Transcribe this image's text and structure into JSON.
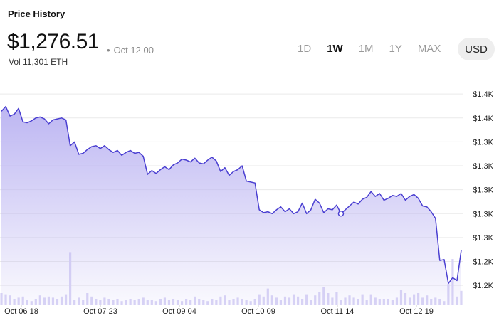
{
  "header": {
    "title": "Price History",
    "price": "$1,276.51",
    "date_stamp": "Oct 12 00",
    "volume": "Vol 11,301 ETH"
  },
  "ranges": [
    {
      "label": "1D",
      "active": false
    },
    {
      "label": "1W",
      "active": true
    },
    {
      "label": "1M",
      "active": false
    },
    {
      "label": "1Y",
      "active": false
    },
    {
      "label": "MAX",
      "active": false
    }
  ],
  "currency": "USD",
  "colors": {
    "line": "#4a3fd1",
    "fill": "#bdb6f2",
    "volume": "#d9d4f5",
    "grid": "#eaeaea"
  },
  "chart_data": {
    "type": "area",
    "ylim": [
      1190,
      1425
    ],
    "y_tick_values": [
      1410,
      1385,
      1360,
      1335,
      1310,
      1285,
      1260,
      1235,
      1210
    ],
    "y_tick_labels": [
      "$1.4K",
      "$1.4K",
      "$1.3K",
      "$1.3K",
      "$1.3K",
      "$1.3K",
      "$1.3K",
      "$1.2K",
      "$1.2K"
    ],
    "x_tick_labels": [
      "Oct 06 18",
      "Oct 07 23",
      "Oct 09 04",
      "Oct 10 09",
      "Oct 11 14",
      "Oct 12 19"
    ],
    "marker_index": 79,
    "series": [
      {
        "values": [
          1392,
          1397,
          1387,
          1389,
          1395,
          1381,
          1380,
          1382,
          1385,
          1386,
          1384,
          1379,
          1383,
          1384,
          1385,
          1383,
          1356,
          1360,
          1347,
          1348,
          1352,
          1355,
          1356,
          1353,
          1356,
          1352,
          1349,
          1351,
          1346,
          1349,
          1351,
          1348,
          1349,
          1345,
          1326,
          1330,
          1327,
          1331,
          1334,
          1331,
          1336,
          1338,
          1342,
          1341,
          1339,
          1343,
          1338,
          1337,
          1341,
          1344,
          1340,
          1329,
          1333,
          1325,
          1329,
          1331,
          1335,
          1319,
          1318,
          1317,
          1289,
          1286,
          1287,
          1285,
          1289,
          1292,
          1287,
          1290,
          1285,
          1287,
          1296,
          1285,
          1289,
          1300,
          1296,
          1286,
          1290,
          1289,
          1294,
          1285,
          1289,
          1293,
          1297,
          1295,
          1300,
          1302,
          1308,
          1303,
          1306,
          1299,
          1301,
          1304,
          1303,
          1306,
          1299,
          1303,
          1305,
          1301,
          1293,
          1292,
          1287,
          1280,
          1236,
          1237,
          1212,
          1218,
          1215,
          1247
        ],
        "volume": [
          10,
          9,
          8,
          5,
          6,
          7,
          4,
          3,
          5,
          8,
          6,
          7,
          6,
          5,
          7,
          9,
          46,
          4,
          6,
          4,
          10,
          7,
          5,
          4,
          6,
          5,
          4,
          5,
          3,
          4,
          5,
          4,
          5,
          6,
          4,
          4,
          3,
          5,
          6,
          4,
          5,
          4,
          3,
          5,
          4,
          7,
          5,
          4,
          3,
          5,
          4,
          7,
          8,
          4,
          5,
          6,
          5,
          4,
          3,
          5,
          9,
          7,
          14,
          8,
          6,
          4,
          7,
          6,
          9,
          7,
          5,
          9,
          4,
          8,
          11,
          15,
          10,
          6,
          11,
          4,
          6,
          8,
          6,
          5,
          9,
          4,
          9,
          6,
          5,
          5,
          5,
          4,
          6,
          13,
          10,
          6,
          9,
          10,
          6,
          8,
          5,
          6,
          5,
          3,
          18,
          40,
          7,
          12
        ]
      }
    ]
  }
}
